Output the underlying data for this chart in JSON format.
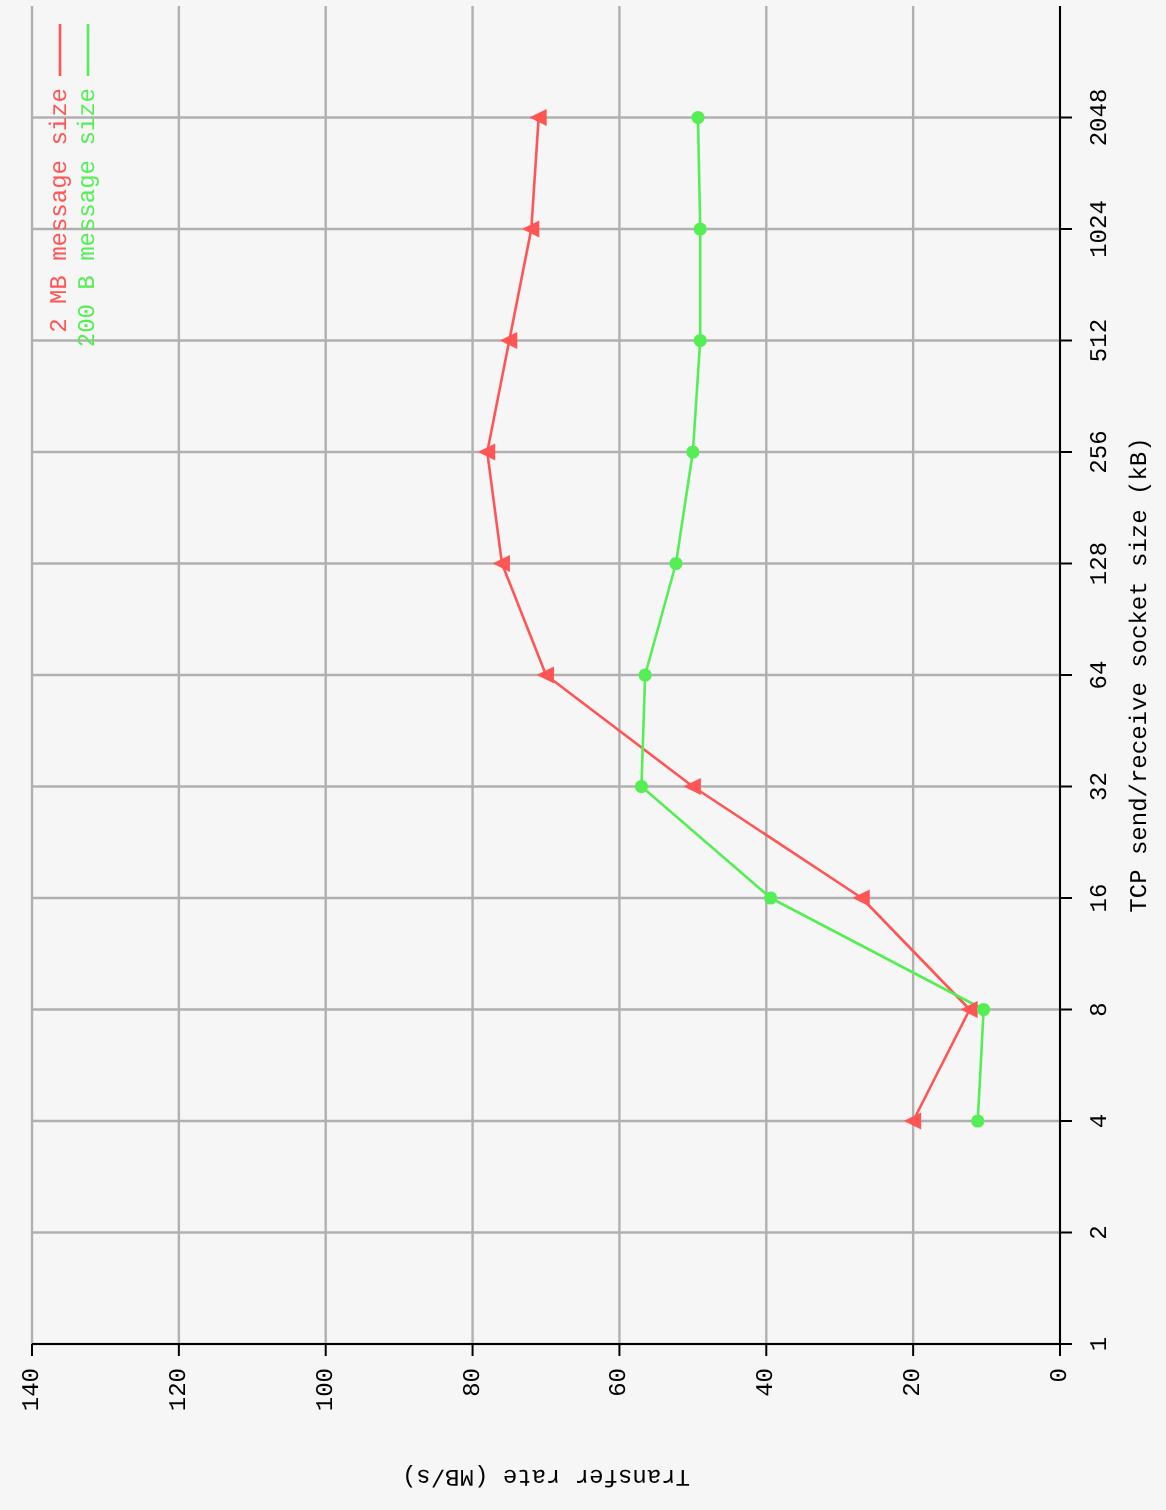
{
  "chart_data": {
    "type": "line",
    "xlabel": "Transfer rate (MB/s)",
    "ylabel": "TCP send/receive socket size (kB)",
    "series": [
      {
        "name": "2 MB message size",
        "color": "#ff5555",
        "marker": "triangle",
        "x": [
          20,
          12.3,
          27,
          50,
          70,
          76,
          78,
          75,
          72,
          71
        ],
        "values": [
          4,
          8,
          16,
          32,
          64,
          128,
          256,
          512,
          1024,
          2048
        ]
      },
      {
        "name": "200 B message size",
        "color": "#55ee55",
        "marker": "circle",
        "x": [
          11.2,
          10.4,
          39.4,
          57,
          56.5,
          52.3,
          50,
          49,
          49,
          49.3
        ],
        "values": [
          4,
          8,
          16,
          32,
          64,
          128,
          256,
          512,
          1024,
          2048
        ]
      }
    ],
    "log": "y",
    "ylim": [
      1,
      4096
    ],
    "yticks": [
      1,
      2,
      4,
      8,
      16,
      32,
      64,
      128,
      256,
      512,
      1024,
      2048
    ],
    "xlim": [
      140,
      0
    ],
    "xticks": [
      140,
      120,
      100,
      80,
      60,
      40,
      20,
      0
    ],
    "grid": true,
    "legend": "top left",
    "line_style": "solid"
  }
}
